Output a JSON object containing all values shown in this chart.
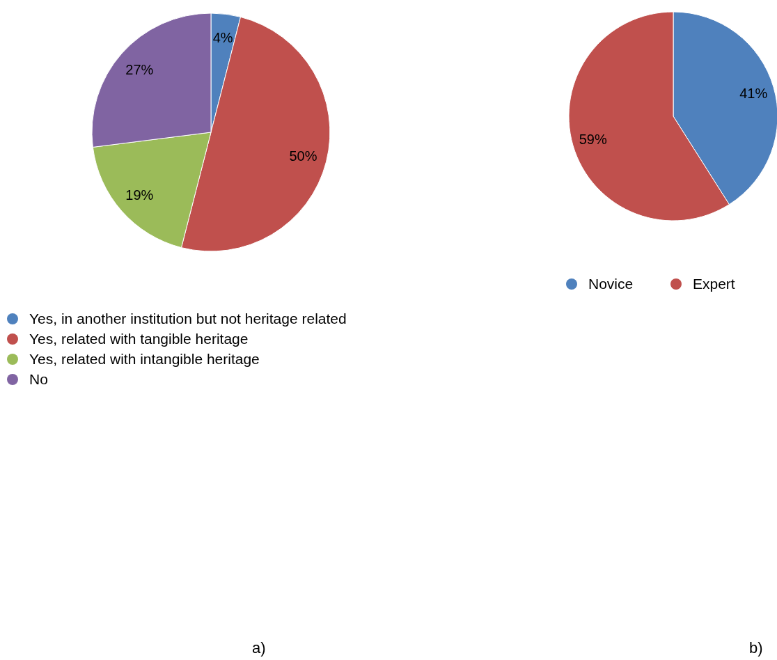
{
  "chart_data": [
    {
      "type": "pie",
      "categories": [
        "Yes, in another institution but not heritage related",
        "Yes, related with tangible heritage",
        "Yes, related with intangible heritage",
        "No"
      ],
      "values": [
        4,
        50,
        19,
        27
      ],
      "colors": [
        "#4f81bd",
        "#c0504d",
        "#9bbb59",
        "#8064a2"
      ],
      "value_labels": [
        "4%",
        "50%",
        "19%",
        "27%"
      ],
      "legend": "bottom left",
      "annotations": [
        "a)"
      ]
    },
    {
      "type": "pie",
      "categories": [
        "Novice",
        "Expert"
      ],
      "values": [
        41,
        59
      ],
      "colors": [
        "#4f81bd",
        "#c0504d"
      ],
      "value_labels": [
        "41%",
        "59%"
      ],
      "legend": "bottom",
      "annotations": [
        "b)"
      ]
    }
  ]
}
